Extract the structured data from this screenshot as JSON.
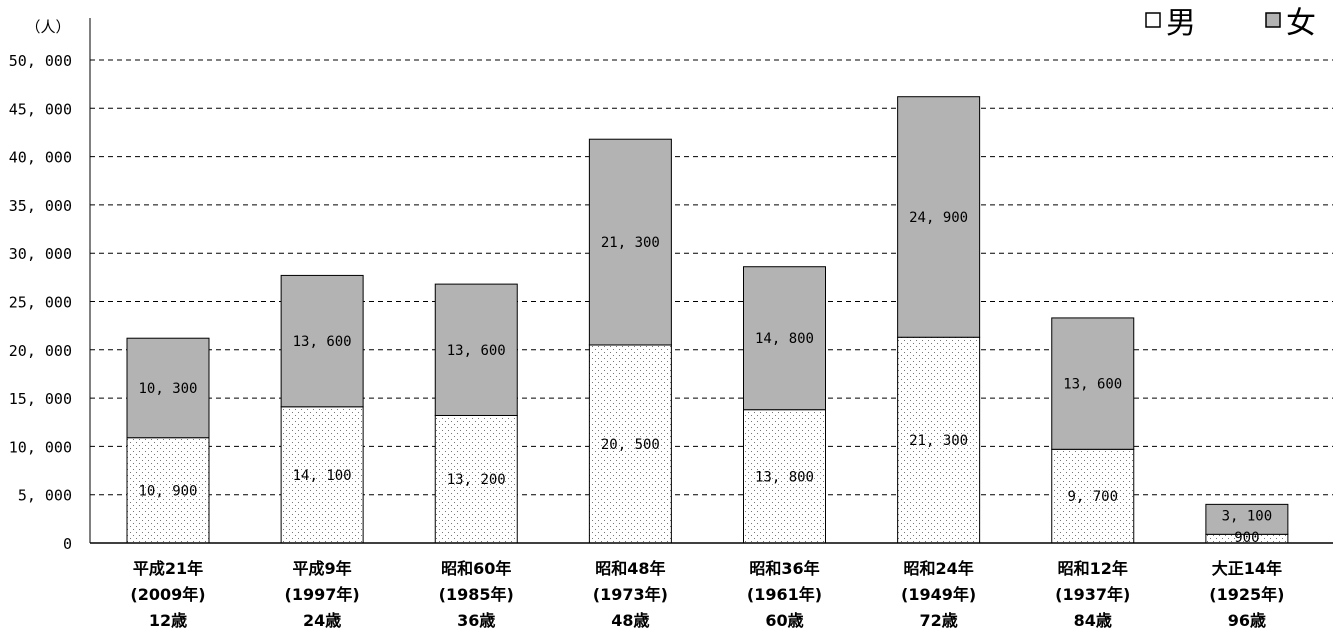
{
  "chart_data": {
    "type": "bar",
    "stacked": true,
    "y_unit_label": "（人）",
    "ylim": [
      0,
      50000
    ],
    "y_ticks": [
      "0",
      "5, 000",
      "10, 000",
      "15, 000",
      "20, 000",
      "25, 000",
      "30, 000",
      "35, 000",
      "40, 000",
      "45, 000",
      "50, 000"
    ],
    "grid": true,
    "legend_position": "top-right",
    "categories": [
      {
        "era": "平成21年",
        "year": "(2009年)",
        "age": "12歳"
      },
      {
        "era": "平成9年",
        "year": "(1997年)",
        "age": "24歳"
      },
      {
        "era": "昭和60年",
        "year": "(1985年)",
        "age": "36歳"
      },
      {
        "era": "昭和48年",
        "year": "(1973年)",
        "age": "48歳"
      },
      {
        "era": "昭和36年",
        "year": "(1961年)",
        "age": "60歳"
      },
      {
        "era": "昭和24年",
        "year": "(1949年)",
        "age": "72歳"
      },
      {
        "era": "昭和12年",
        "year": "(1937年)",
        "age": "84歳"
      },
      {
        "era": "大正14年",
        "year": "(1925年)",
        "age": "96歳"
      }
    ],
    "series": [
      {
        "name": "男",
        "fill": "dotted-white",
        "values": [
          10900,
          14100,
          13200,
          20500,
          13800,
          21300,
          9700,
          900
        ],
        "labels": [
          "10, 900",
          "14, 100",
          "13, 200",
          "20, 500",
          "13, 800",
          "21, 300",
          "9, 700",
          "900"
        ]
      },
      {
        "name": "女",
        "fill": "#b3b3b3",
        "values": [
          10300,
          13600,
          13600,
          21300,
          14800,
          24900,
          13600,
          3100
        ],
        "labels": [
          "10, 300",
          "13, 600",
          "13, 600",
          "21, 300",
          "14, 800",
          "24, 900",
          "13, 600",
          "3, 100"
        ]
      }
    ]
  }
}
